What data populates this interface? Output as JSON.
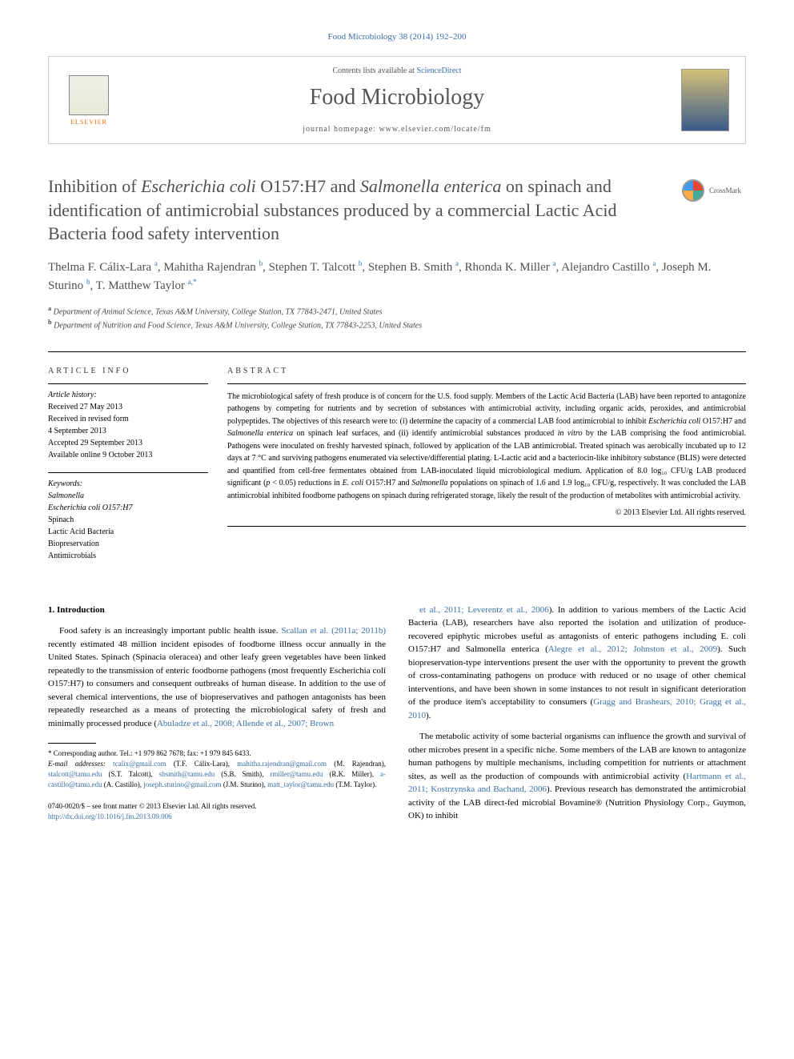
{
  "citation": "Food Microbiology 38 (2014) 192–200",
  "header": {
    "contents_prefix": "Contents lists available at ",
    "contents_link": "ScienceDirect",
    "journal_name": "Food Microbiology",
    "homepage_prefix": "journal homepage: ",
    "homepage_url": "www.elsevier.com/locate/fm",
    "publisher": "ELSEVIER"
  },
  "crossmark": "CrossMark",
  "title": "Inhibition of Escherichia coli O157:H7 and Salmonella enterica on spinach and identification of antimicrobial substances produced by a commercial Lactic Acid Bacteria food safety intervention",
  "authors_html": "Thelma F. Cálix-Lara <sup>a</sup>, Mahitha Rajendran <sup>b</sup>, Stephen T. Talcott <sup>b</sup>, Stephen B. Smith <sup>a</sup>, Rhonda K. Miller <sup>a</sup>, Alejandro Castillo <sup>a</sup>, Joseph M. Sturino <sup>b</sup>, T. Matthew Taylor <sup class=\"star\">a,*</sup>",
  "affiliations": [
    {
      "sup": "a",
      "text": "Department of Animal Science, Texas A&M University, College Station, TX 77843-2471, United States"
    },
    {
      "sup": "b",
      "text": "Department of Nutrition and Food Science, Texas A&M University, College Station, TX 77843-2253, United States"
    }
  ],
  "info": {
    "header": "ARTICLE INFO",
    "history_label": "Article history:",
    "history": [
      "Received 27 May 2013",
      "Received in revised form",
      "4 September 2013",
      "Accepted 29 September 2013",
      "Available online 9 October 2013"
    ],
    "keywords_label": "Keywords:",
    "keywords": [
      "Salmonella",
      "Escherichia coli O157:H7",
      "Spinach",
      "Lactic Acid Bacteria",
      "Biopreservation",
      "Antimicrobials"
    ]
  },
  "abstract": {
    "header": "ABSTRACT",
    "body": "The microbiological safety of fresh produce is of concern for the U.S. food supply. Members of the Lactic Acid Bacteria (LAB) have been reported to antagonize pathogens by competing for nutrients and by secretion of substances with antimicrobial activity, including organic acids, peroxides, and antimicrobial polypeptides. The objectives of this research were to: (i) determine the capacity of a commercial LAB food antimicrobial to inhibit Escherichia coli O157:H7 and Salmonella enterica on spinach leaf surfaces, and (ii) identify antimicrobial substances produced in vitro by the LAB comprising the food antimicrobial. Pathogens were inoculated on freshly harvested spinach, followed by application of the LAB antimicrobial. Treated spinach was aerobically incubated up to 12 days at 7 °C and surviving pathogens enumerated via selective/differential plating. L-Lactic acid and a bacteriocin-like inhibitory substance (BLIS) were detected and quantified from cell-free fermentates obtained from LAB-inoculated liquid microbiological medium. Application of 8.0 log₁₀ CFU/g LAB produced significant (p < 0.05) reductions in E. coli O157:H7 and Salmonella populations on spinach of 1.6 and 1.9 log₁₀ CFU/g, respectively. It was concluded the LAB antimicrobial inhibited foodborne pathogens on spinach during refrigerated storage, likely the result of the production of metabolites with antimicrobial activity.",
    "copyright": "© 2013 Elsevier Ltd. All rights reserved."
  },
  "body": {
    "section_num": "1.",
    "section_title": "Introduction",
    "col1_p1_pre": "Food safety is an increasingly important public health issue. ",
    "col1_p1_ref1": "Scallan et al. (2011a; 2011b)",
    "col1_p1_mid": " recently estimated 48 million incident episodes of foodborne illness occur annually in the United States. Spinach (Spinacia oleracea) and other leafy green vegetables have been linked repeatedly to the transmission of enteric foodborne pathogens (most frequently Escherichia coli O157:H7) to consumers and consequent outbreaks of human disease. In addition to the use of several chemical interventions, the use of biopreservatives and pathogen antagonists has been repeatedly researched as a means of protecting the microbiological safety of fresh and minimally processed produce (",
    "col1_p1_ref2": "Abuladze et al., 2008; Allende et al., 2007; Brown",
    "col2_p1_ref": "et al., 2011; Leverentz et al., 2006",
    "col2_p1_mid": "). In addition to various members of the Lactic Acid Bacteria (LAB), researchers have also reported the isolation and utilization of produce-recovered epiphytic microbes useful as antagonists of enteric pathogens including E. coli O157:H7 and Salmonella enterica (",
    "col2_p1_ref2": "Alegre et al., 2012; Johnston et al., 2009",
    "col2_p1_tail": "). Such biopreservation-type interventions present the user with the opportunity to prevent the growth of cross-contaminating pathogens on produce with reduced or no usage of other chemical interventions, and have been shown in some instances to not result in significant deterioration of the produce item's acceptability to consumers (",
    "col2_p1_ref3": "Gragg and Brashears, 2010; Gragg et al., 2010",
    "col2_p1_end": ").",
    "col2_p2_pre": "The metabolic activity of some bacterial organisms can influence the growth and survival of other microbes present in a specific niche. Some members of the LAB are known to antagonize human pathogens by multiple mechanisms, including competition for nutrients or attachment sites, as well as the production of compounds with antimicrobial activity (",
    "col2_p2_ref": "Hartmann et al., 2011; Kostrzynska and Bachand, 2006",
    "col2_p2_tail": "). Previous research has demonstrated the antimicrobial activity of the LAB direct-fed microbial Bovamine® (Nutrition Physiology Corp., Guymon, OK) to inhibit"
  },
  "footer": {
    "corresponding": "* Corresponding author. Tel.: +1 979 862 7678; fax: +1 979 845 6433.",
    "emails_label": "E-mail addresses:",
    "emails": [
      {
        "addr": "tcalix@gmail.com",
        "name": "(T.F. Cálix-Lara),"
      },
      {
        "addr": "mahitha.rajendran@gmail.com",
        "name": "(M. Rajendran),"
      },
      {
        "addr": "stalcott@tamu.edu",
        "name": "(S.T. Talcott),"
      },
      {
        "addr": "sbsmith@tamu.edu",
        "name": "(S.B. Smith),"
      },
      {
        "addr": "rmiller@tamu.edu",
        "name": "(R.K. Miller),"
      },
      {
        "addr": "a-castillo@tamu.edu",
        "name": "(A. Castillo),"
      },
      {
        "addr": "joseph.sturino@gmail.com",
        "name": "(J.M. Sturino),"
      },
      {
        "addr": "matt_taylor@tamu.edu",
        "name": "(T.M. Taylor)."
      }
    ],
    "issn": "0740-0020/$ – see front matter © 2013 Elsevier Ltd. All rights reserved.",
    "doi": "http://dx.doi.org/10.1016/j.fm.2013.09.006"
  },
  "colors": {
    "link": "#3a6ea5",
    "text": "#000000",
    "title_gray": "#505050",
    "orange": "#e86c0a"
  }
}
